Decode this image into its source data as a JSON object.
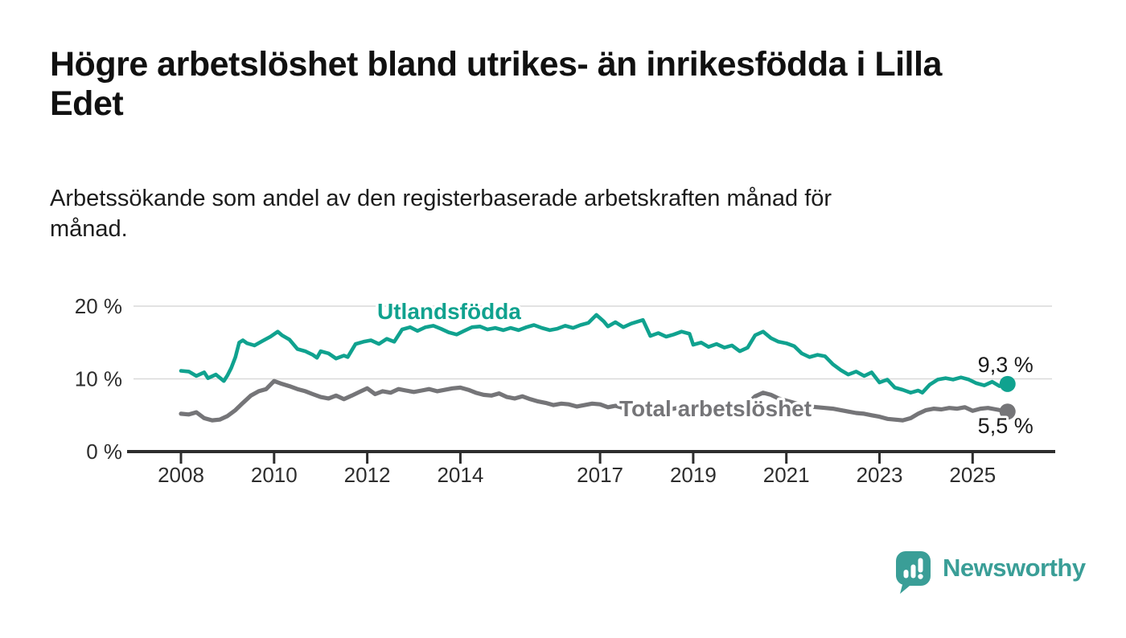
{
  "title": {
    "line1": "Högre arbetslöshet bland utrikes- än inrikesfödda i Lilla",
    "line2": "Edet"
  },
  "subtitle": {
    "line1": "Arbetssökande som andel av den registerbaserade arbetskraften månad för",
    "line2": "månad."
  },
  "branding": {
    "name": "Newsworthy",
    "icon": "bar-chart-speech-bubble",
    "color": "#3a9e97"
  },
  "colors": {
    "foreign_born_line": "#10a28f",
    "total_line": "#757578",
    "grid": "#d9d9d9",
    "axis": "#2d2d2d",
    "text": "#1a1a1a"
  },
  "chart_data": {
    "type": "line",
    "unit": "%",
    "grid": "horizontal",
    "legend_position": "inline-labels",
    "x_range": [
      2008,
      2025.75
    ],
    "ylim": [
      0,
      22
    ],
    "x_axis": {
      "ticks": [
        {
          "value": 2008,
          "label": "2008"
        },
        {
          "value": 2010,
          "label": "2010"
        },
        {
          "value": 2012,
          "label": "2012"
        },
        {
          "value": 2014,
          "label": "2014"
        },
        {
          "value": 2017,
          "label": "2017"
        },
        {
          "value": 2019,
          "label": "2019"
        },
        {
          "value": 2021,
          "label": "2021"
        },
        {
          "value": 2023,
          "label": "2023"
        },
        {
          "value": 2025,
          "label": "2025"
        }
      ]
    },
    "y_axis": {
      "ticks": [
        {
          "value": 0,
          "label": "0 %"
        },
        {
          "value": 10,
          "label": "10 %"
        },
        {
          "value": 20,
          "label": "20 %"
        }
      ]
    },
    "series": [
      {
        "name": "Utlandsfödda",
        "color": "#10a28f",
        "end_label": "9,3 %",
        "end_value": 9.3,
        "points": [
          [
            2008.0,
            11.1
          ],
          [
            2008.17,
            11.0
          ],
          [
            2008.33,
            10.4
          ],
          [
            2008.5,
            10.9
          ],
          [
            2008.58,
            10.1
          ],
          [
            2008.75,
            10.6
          ],
          [
            2008.92,
            9.7
          ],
          [
            2009.0,
            10.5
          ],
          [
            2009.08,
            11.5
          ],
          [
            2009.17,
            13.0
          ],
          [
            2009.25,
            15.0
          ],
          [
            2009.33,
            15.3
          ],
          [
            2009.42,
            14.9
          ],
          [
            2009.58,
            14.6
          ],
          [
            2009.75,
            15.2
          ],
          [
            2009.92,
            15.8
          ],
          [
            2010.08,
            16.5
          ],
          [
            2010.17,
            16.0
          ],
          [
            2010.33,
            15.4
          ],
          [
            2010.5,
            14.1
          ],
          [
            2010.67,
            13.8
          ],
          [
            2010.83,
            13.3
          ],
          [
            2010.92,
            12.9
          ],
          [
            2011.0,
            13.8
          ],
          [
            2011.17,
            13.5
          ],
          [
            2011.33,
            12.8
          ],
          [
            2011.5,
            13.2
          ],
          [
            2011.58,
            13.0
          ],
          [
            2011.75,
            14.8
          ],
          [
            2011.92,
            15.1
          ],
          [
            2012.08,
            15.3
          ],
          [
            2012.25,
            14.8
          ],
          [
            2012.42,
            15.5
          ],
          [
            2012.58,
            15.1
          ],
          [
            2012.75,
            16.8
          ],
          [
            2012.92,
            17.1
          ],
          [
            2013.08,
            16.6
          ],
          [
            2013.25,
            17.1
          ],
          [
            2013.42,
            17.3
          ],
          [
            2013.58,
            16.9
          ],
          [
            2013.75,
            16.4
          ],
          [
            2013.92,
            16.1
          ],
          [
            2014.08,
            16.6
          ],
          [
            2014.25,
            17.1
          ],
          [
            2014.42,
            17.2
          ],
          [
            2014.58,
            16.8
          ],
          [
            2014.75,
            17.0
          ],
          [
            2014.92,
            16.7
          ],
          [
            2015.08,
            17.0
          ],
          [
            2015.25,
            16.7
          ],
          [
            2015.42,
            17.1
          ],
          [
            2015.58,
            17.4
          ],
          [
            2015.75,
            17.0
          ],
          [
            2015.92,
            16.7
          ],
          [
            2016.08,
            16.9
          ],
          [
            2016.25,
            17.3
          ],
          [
            2016.42,
            17.0
          ],
          [
            2016.58,
            17.4
          ],
          [
            2016.75,
            17.7
          ],
          [
            2016.92,
            18.8
          ],
          [
            2017.08,
            17.9
          ],
          [
            2017.17,
            17.2
          ],
          [
            2017.33,
            17.8
          ],
          [
            2017.5,
            17.1
          ],
          [
            2017.67,
            17.6
          ],
          [
            2017.92,
            18.1
          ],
          [
            2018.08,
            15.9
          ],
          [
            2018.25,
            16.3
          ],
          [
            2018.42,
            15.8
          ],
          [
            2018.58,
            16.1
          ],
          [
            2018.75,
            16.5
          ],
          [
            2018.92,
            16.2
          ],
          [
            2019.0,
            14.7
          ],
          [
            2019.17,
            15.0
          ],
          [
            2019.33,
            14.4
          ],
          [
            2019.5,
            14.8
          ],
          [
            2019.67,
            14.3
          ],
          [
            2019.83,
            14.6
          ],
          [
            2020.0,
            13.8
          ],
          [
            2020.17,
            14.3
          ],
          [
            2020.33,
            16.0
          ],
          [
            2020.5,
            16.5
          ],
          [
            2020.67,
            15.6
          ],
          [
            2020.83,
            15.1
          ],
          [
            2021.0,
            14.9
          ],
          [
            2021.17,
            14.5
          ],
          [
            2021.33,
            13.5
          ],
          [
            2021.5,
            13.0
          ],
          [
            2021.67,
            13.3
          ],
          [
            2021.83,
            13.1
          ],
          [
            2022.0,
            12.0
          ],
          [
            2022.17,
            11.2
          ],
          [
            2022.33,
            10.6
          ],
          [
            2022.5,
            11.0
          ],
          [
            2022.67,
            10.4
          ],
          [
            2022.83,
            10.9
          ],
          [
            2023.0,
            9.5
          ],
          [
            2023.17,
            9.9
          ],
          [
            2023.33,
            8.8
          ],
          [
            2023.5,
            8.5
          ],
          [
            2023.67,
            8.1
          ],
          [
            2023.83,
            8.4
          ],
          [
            2023.92,
            8.1
          ],
          [
            2024.08,
            9.2
          ],
          [
            2024.25,
            9.9
          ],
          [
            2024.42,
            10.1
          ],
          [
            2024.58,
            9.9
          ],
          [
            2024.75,
            10.2
          ],
          [
            2024.92,
            9.9
          ],
          [
            2025.08,
            9.4
          ],
          [
            2025.25,
            9.1
          ],
          [
            2025.42,
            9.6
          ],
          [
            2025.58,
            9.0
          ],
          [
            2025.75,
            9.3
          ]
        ]
      },
      {
        "name": "Total arbetslöshet",
        "color": "#757578",
        "end_label": "5,5 %",
        "end_value": 5.5,
        "points": [
          [
            2008.0,
            5.2
          ],
          [
            2008.17,
            5.1
          ],
          [
            2008.33,
            5.4
          ],
          [
            2008.5,
            4.6
          ],
          [
            2008.67,
            4.3
          ],
          [
            2008.83,
            4.4
          ],
          [
            2009.0,
            4.9
          ],
          [
            2009.17,
            5.7
          ],
          [
            2009.33,
            6.7
          ],
          [
            2009.5,
            7.7
          ],
          [
            2009.67,
            8.3
          ],
          [
            2009.83,
            8.6
          ],
          [
            2010.0,
            9.7
          ],
          [
            2010.17,
            9.3
          ],
          [
            2010.33,
            9.0
          ],
          [
            2010.5,
            8.6
          ],
          [
            2010.67,
            8.3
          ],
          [
            2010.83,
            7.9
          ],
          [
            2011.0,
            7.5
          ],
          [
            2011.17,
            7.3
          ],
          [
            2011.33,
            7.7
          ],
          [
            2011.5,
            7.2
          ],
          [
            2011.67,
            7.7
          ],
          [
            2011.83,
            8.2
          ],
          [
            2012.0,
            8.7
          ],
          [
            2012.17,
            7.9
          ],
          [
            2012.33,
            8.3
          ],
          [
            2012.5,
            8.1
          ],
          [
            2012.67,
            8.6
          ],
          [
            2012.83,
            8.4
          ],
          [
            2013.0,
            8.2
          ],
          [
            2013.17,
            8.4
          ],
          [
            2013.33,
            8.6
          ],
          [
            2013.5,
            8.3
          ],
          [
            2013.67,
            8.5
          ],
          [
            2013.83,
            8.7
          ],
          [
            2014.0,
            8.8
          ],
          [
            2014.17,
            8.5
          ],
          [
            2014.33,
            8.1
          ],
          [
            2014.5,
            7.8
          ],
          [
            2014.67,
            7.7
          ],
          [
            2014.83,
            8.0
          ],
          [
            2015.0,
            7.5
          ],
          [
            2015.17,
            7.3
          ],
          [
            2015.33,
            7.6
          ],
          [
            2015.5,
            7.2
          ],
          [
            2015.67,
            6.9
          ],
          [
            2015.83,
            6.7
          ],
          [
            2016.0,
            6.4
          ],
          [
            2016.17,
            6.6
          ],
          [
            2016.33,
            6.5
          ],
          [
            2016.5,
            6.2
          ],
          [
            2016.67,
            6.4
          ],
          [
            2016.83,
            6.6
          ],
          [
            2017.0,
            6.5
          ],
          [
            2017.17,
            6.1
          ],
          [
            2017.33,
            6.3
          ],
          [
            2017.5,
            6.0
          ],
          [
            2017.67,
            6.2
          ],
          [
            2017.83,
            6.1
          ],
          [
            2018.0,
            6.0
          ],
          [
            2018.17,
            5.9
          ],
          [
            2018.33,
            6.1
          ],
          [
            2018.5,
            5.8
          ],
          [
            2018.67,
            6.0
          ],
          [
            2018.83,
            5.9
          ],
          [
            2019.0,
            6.2
          ],
          [
            2019.17,
            5.9
          ],
          [
            2019.33,
            5.7
          ],
          [
            2019.5,
            5.8
          ],
          [
            2019.67,
            5.6
          ],
          [
            2019.83,
            5.7
          ],
          [
            2020.0,
            5.9
          ],
          [
            2020.17,
            6.6
          ],
          [
            2020.33,
            7.6
          ],
          [
            2020.5,
            8.1
          ],
          [
            2020.67,
            7.8
          ],
          [
            2020.83,
            7.3
          ],
          [
            2021.0,
            7.0
          ],
          [
            2021.17,
            6.7
          ],
          [
            2021.33,
            6.4
          ],
          [
            2021.5,
            6.2
          ],
          [
            2021.67,
            6.1
          ],
          [
            2021.83,
            6.0
          ],
          [
            2022.0,
            5.9
          ],
          [
            2022.17,
            5.7
          ],
          [
            2022.33,
            5.5
          ],
          [
            2022.5,
            5.3
          ],
          [
            2022.67,
            5.2
          ],
          [
            2022.83,
            5.0
          ],
          [
            2023.0,
            4.8
          ],
          [
            2023.17,
            4.5
          ],
          [
            2023.33,
            4.4
          ],
          [
            2023.5,
            4.3
          ],
          [
            2023.67,
            4.6
          ],
          [
            2023.83,
            5.2
          ],
          [
            2024.0,
            5.7
          ],
          [
            2024.17,
            5.9
          ],
          [
            2024.33,
            5.8
          ],
          [
            2024.5,
            6.0
          ],
          [
            2024.67,
            5.9
          ],
          [
            2024.83,
            6.1
          ],
          [
            2025.0,
            5.6
          ],
          [
            2025.17,
            5.9
          ],
          [
            2025.33,
            6.0
          ],
          [
            2025.5,
            5.8
          ],
          [
            2025.75,
            5.5
          ]
        ]
      }
    ]
  }
}
